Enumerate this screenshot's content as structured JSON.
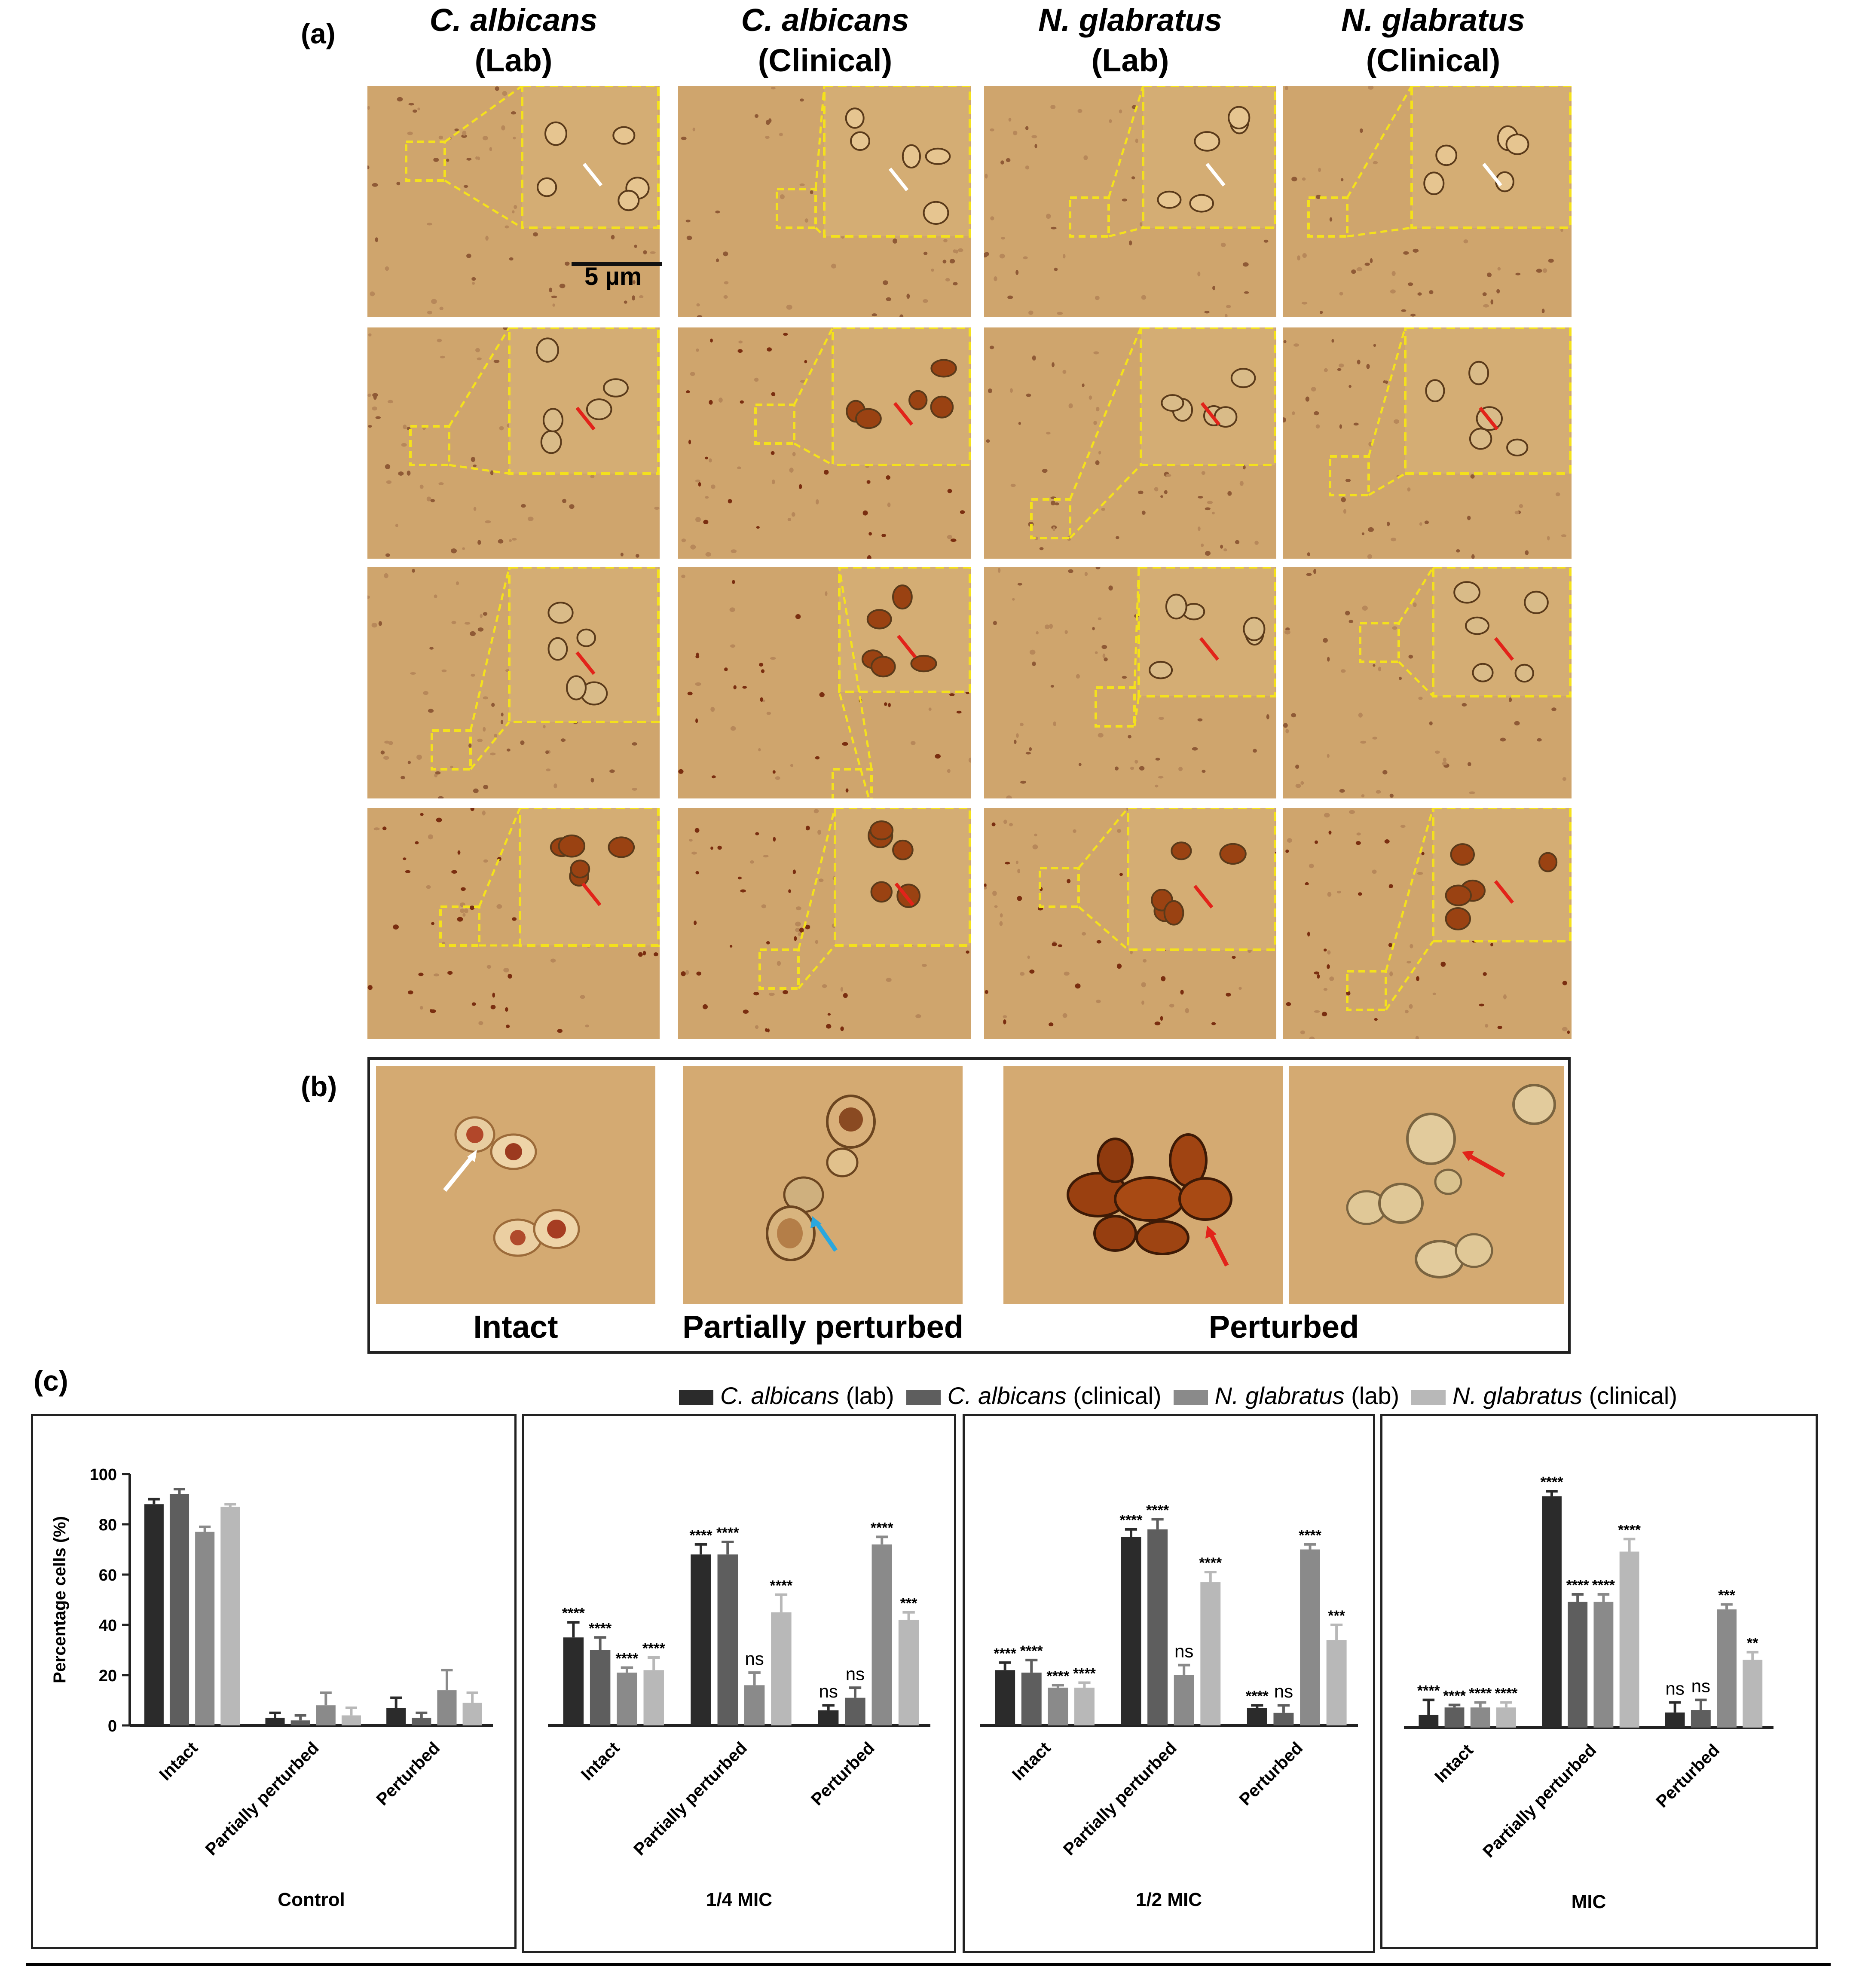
{
  "panel_a": {
    "label": "(a)",
    "columns": [
      {
        "species": "C. albicans",
        "source": "(Lab)"
      },
      {
        "species": "C. albicans",
        "source": "(Clinical)"
      },
      {
        "species": "N. glabratus",
        "source": "(Lab)"
      },
      {
        "species": "N. glabratus",
        "source": "(Clinical)"
      }
    ],
    "scale_bar": "5 µm",
    "rows": 4
  },
  "panel_b": {
    "label": "(b)",
    "captions": [
      "Intact",
      "Partially perturbed",
      "Perturbed"
    ]
  },
  "panel_c": {
    "label": "(c)",
    "legend": [
      {
        "species": "C. albicans",
        "source": "(lab)",
        "color": "#2b2b2b"
      },
      {
        "species": "C. albicans",
        "source": "(clinical)",
        "color": "#5e5e5e"
      },
      {
        "species": "N. glabratus",
        "source": "(lab)",
        "color": "#8a8a8a"
      },
      {
        "species": "N. glabratus",
        "source": "(clinical)",
        "color": "#b8b8b8"
      }
    ]
  },
  "chart_data": [
    {
      "type": "bar",
      "title": "Control",
      "ylabel": "Percentage cells (%)",
      "ylim": [
        0,
        100
      ],
      "yticks": [
        0,
        20,
        40,
        60,
        80,
        100
      ],
      "categories": [
        "Intact",
        "Partially perturbed",
        "Perturbed"
      ],
      "series": [
        {
          "name": "C. albicans (lab)",
          "values": [
            88,
            3,
            7
          ],
          "errors": [
            2,
            2,
            4
          ]
        },
        {
          "name": "C. albicans (clinical)",
          "values": [
            92,
            2,
            3
          ],
          "errors": [
            2,
            2,
            2
          ]
        },
        {
          "name": "N. glabratus (lab)",
          "values": [
            77,
            8,
            14
          ],
          "errors": [
            2,
            5,
            8
          ]
        },
        {
          "name": "N. glabratus (clinical)",
          "values": [
            87,
            4,
            9
          ],
          "errors": [
            1,
            3,
            4
          ]
        }
      ],
      "significance": [
        [
          "",
          "",
          ""
        ],
        [
          "",
          "",
          ""
        ],
        [
          "",
          "",
          ""
        ],
        [
          "",
          "",
          ""
        ]
      ]
    },
    {
      "type": "bar",
      "title": "1/4 MIC",
      "ylim": [
        0,
        100
      ],
      "categories": [
        "Intact",
        "Partially perturbed",
        "Perturbed"
      ],
      "series": [
        {
          "name": "C. albicans (lab)",
          "values": [
            35,
            68,
            6
          ],
          "errors": [
            6,
            4,
            2
          ]
        },
        {
          "name": "C. albicans (clinical)",
          "values": [
            30,
            68,
            11
          ],
          "errors": [
            5,
            5,
            4
          ]
        },
        {
          "name": "N. glabratus (lab)",
          "values": [
            21,
            16,
            72
          ],
          "errors": [
            2,
            5,
            3
          ]
        },
        {
          "name": "N. glabratus (clinical)",
          "values": [
            22,
            45,
            42
          ],
          "errors": [
            5,
            7,
            3
          ]
        }
      ],
      "significance": [
        [
          "****",
          "****",
          "ns"
        ],
        [
          "****",
          "****",
          "ns"
        ],
        [
          "****",
          "ns",
          "****"
        ],
        [
          "****",
          "****",
          "***"
        ]
      ]
    },
    {
      "type": "bar",
      "title": "1/2 MIC",
      "ylim": [
        0,
        100
      ],
      "categories": [
        "Intact",
        "Partially perturbed",
        "Perturbed"
      ],
      "series": [
        {
          "name": "C. albicans (lab)",
          "values": [
            22,
            75,
            7
          ],
          "errors": [
            3,
            3,
            1
          ]
        },
        {
          "name": "C. albicans (clinical)",
          "values": [
            21,
            78,
            5
          ],
          "errors": [
            5,
            4,
            3
          ]
        },
        {
          "name": "N. glabratus (lab)",
          "values": [
            15,
            20,
            70
          ],
          "errors": [
            1,
            4,
            2
          ]
        },
        {
          "name": "N. glabratus (clinical)",
          "values": [
            15,
            57,
            34
          ],
          "errors": [
            2,
            4,
            6
          ]
        }
      ],
      "significance": [
        [
          "****",
          "****",
          "****"
        ],
        [
          "****",
          "****",
          "ns"
        ],
        [
          "****",
          "ns",
          "****"
        ],
        [
          "****",
          "****",
          "***"
        ]
      ]
    },
    {
      "type": "bar",
      "title": "MIC",
      "ylim": [
        0,
        100
      ],
      "categories": [
        "Intact",
        "Partially perturbed",
        "Perturbed"
      ],
      "series": [
        {
          "name": "C. albicans (lab)",
          "values": [
            5,
            92,
            6
          ],
          "errors": [
            6,
            2,
            4
          ]
        },
        {
          "name": "C. albicans (clinical)",
          "values": [
            8,
            50,
            7
          ],
          "errors": [
            1,
            3,
            4
          ]
        },
        {
          "name": "N. glabratus (lab)",
          "values": [
            8,
            50,
            47
          ],
          "errors": [
            2,
            3,
            2
          ]
        },
        {
          "name": "N. glabratus (clinical)",
          "values": [
            8,
            70,
            27
          ],
          "errors": [
            2,
            5,
            3
          ]
        }
      ],
      "significance": [
        [
          "****",
          "****",
          "ns"
        ],
        [
          "****",
          "****",
          "ns"
        ],
        [
          "****",
          "****",
          "***"
        ],
        [
          "****",
          "****",
          "**"
        ]
      ]
    }
  ]
}
